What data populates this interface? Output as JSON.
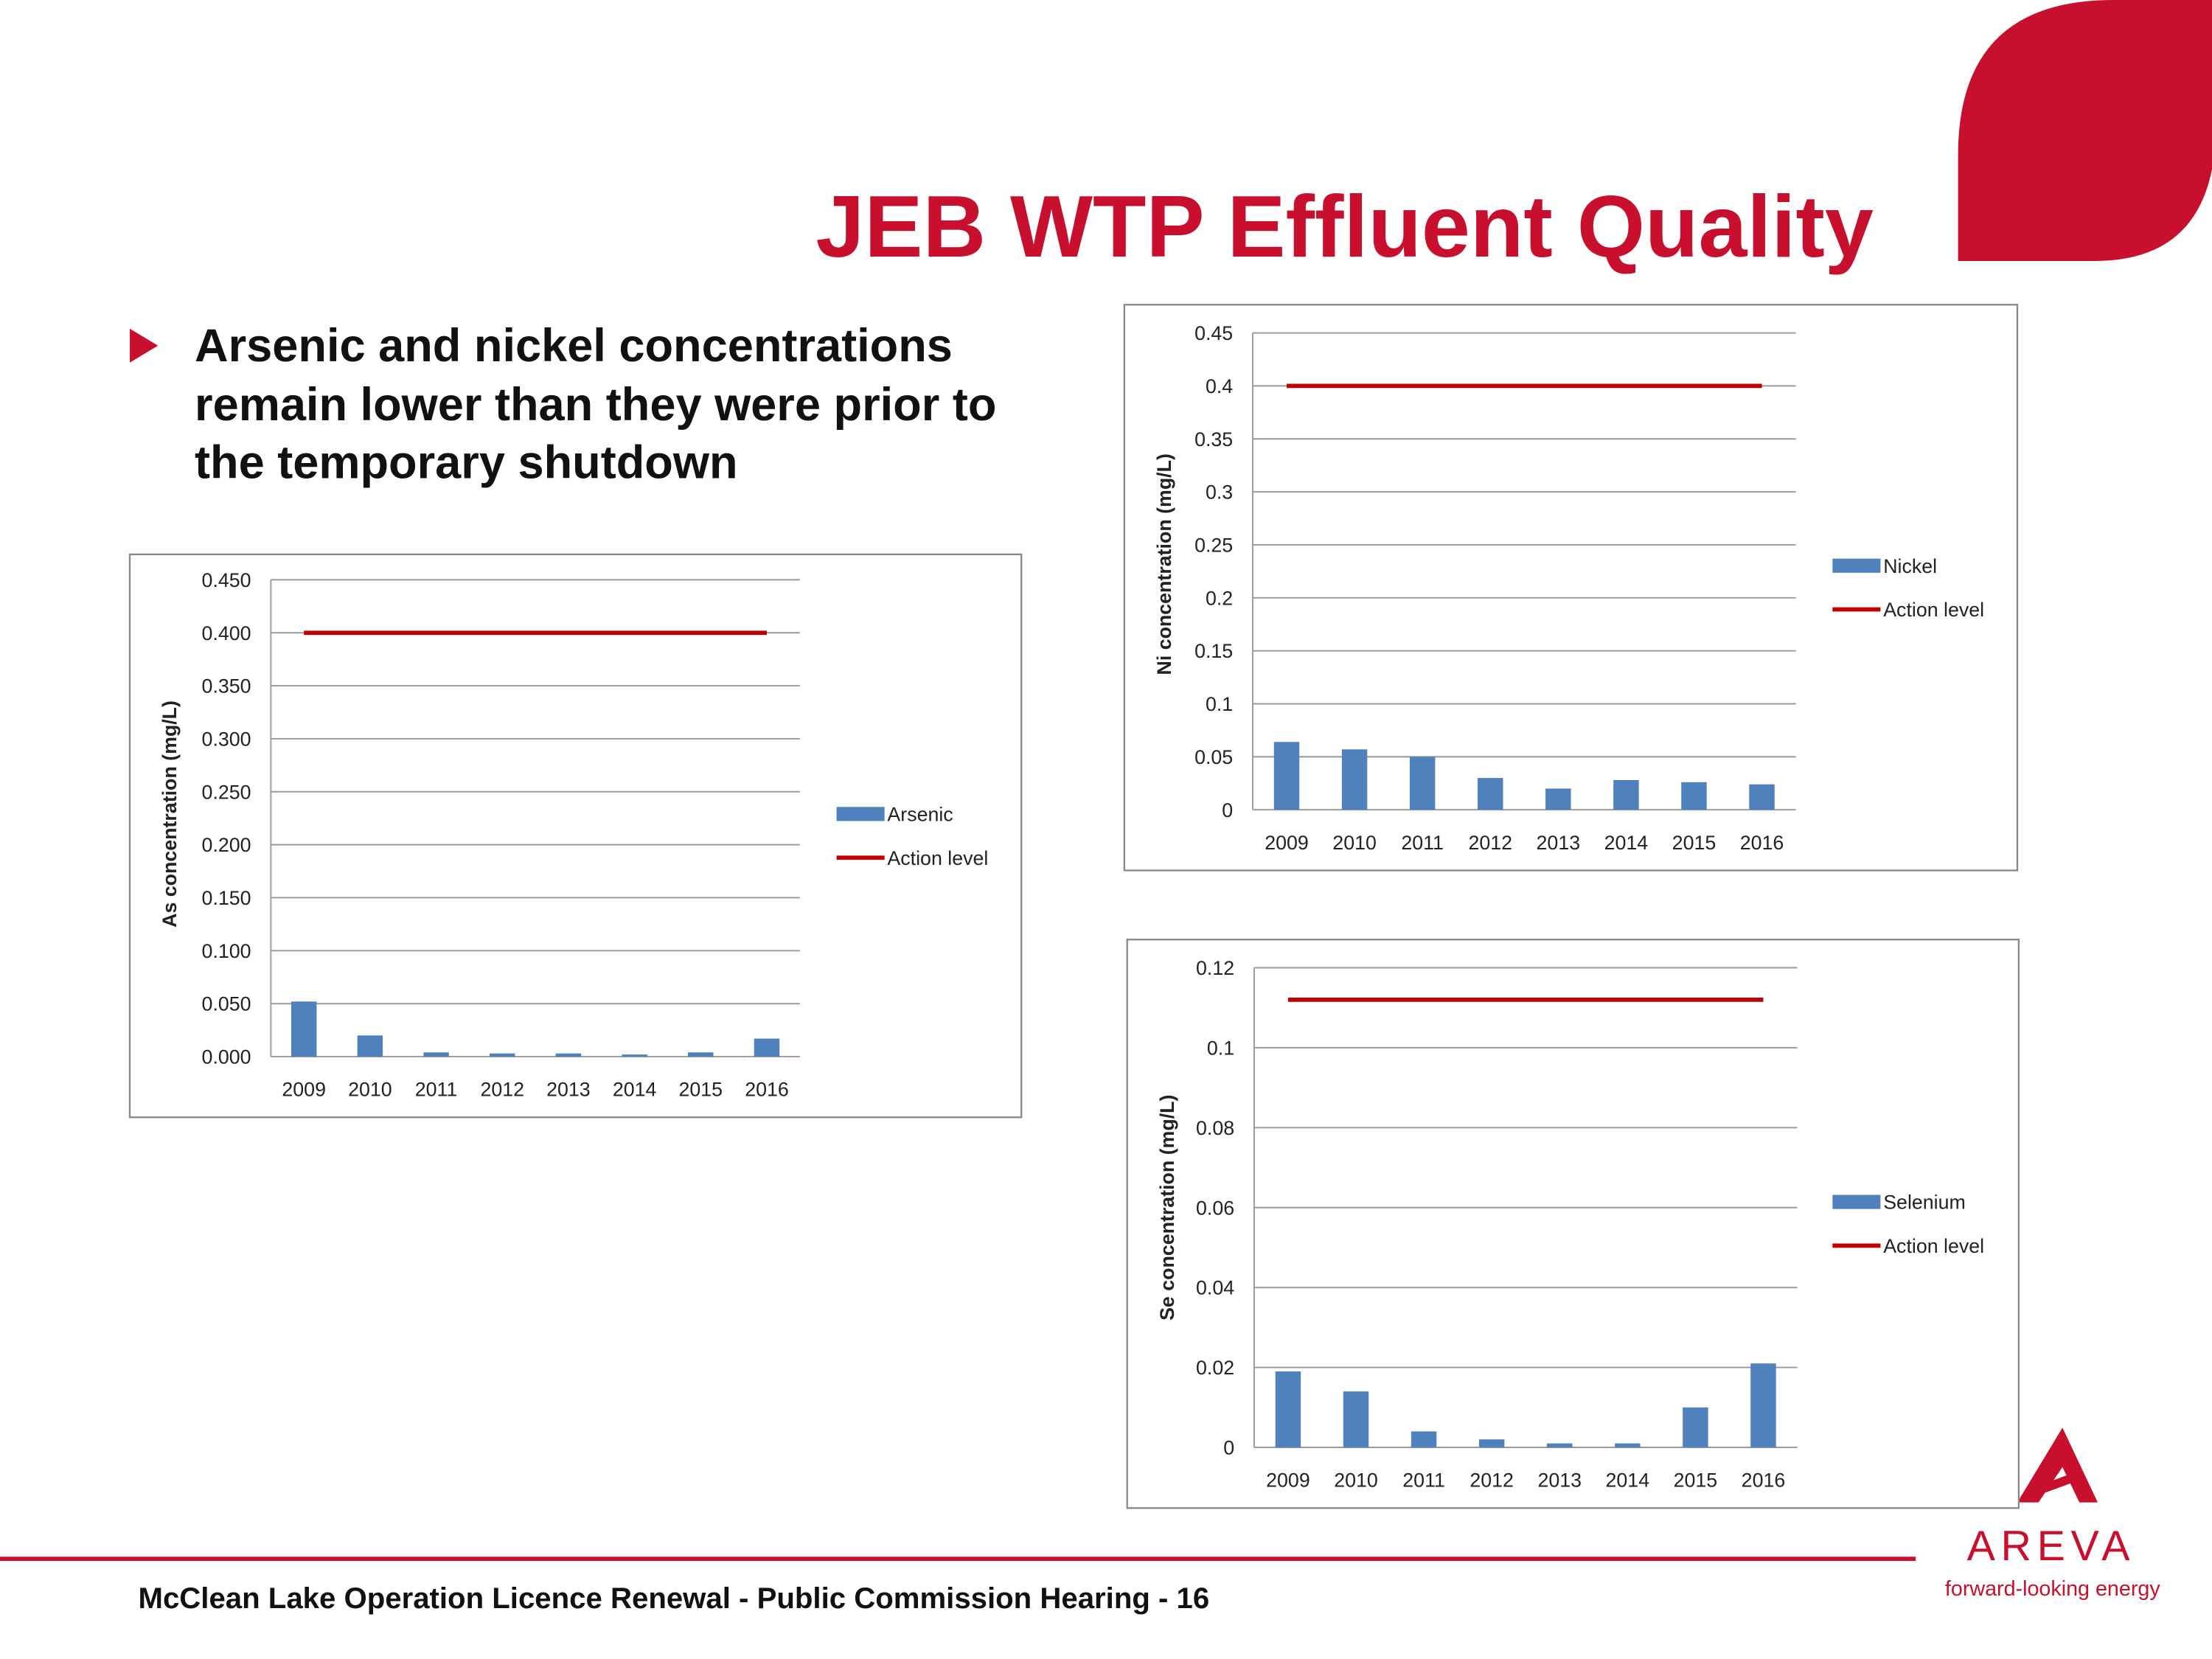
{
  "title": "JEB WTP Effluent Quality",
  "bullet": [
    "Arsenic and nickel concentrations",
    "remain lower than they were prior to",
    "the temporary shutdown"
  ],
  "footer": "McClean Lake Operation Licence Renewal - Public Commission Hearing - 16",
  "logo": {
    "name": "AREVA",
    "tagline": "forward-looking energy"
  },
  "chart_data": [
    {
      "type": "bar",
      "y_label": "As concentration (mg/L)",
      "categories": [
        "2009",
        "2010",
        "2011",
        "2012",
        "2013",
        "2014",
        "2015",
        "2016"
      ],
      "series": [
        {
          "name": "Arsenic",
          "color": "#4f81bd",
          "values": [
            0.052,
            0.02,
            0.004,
            0.003,
            0.003,
            0.002,
            0.004,
            0.017
          ]
        },
        {
          "name": "Action level",
          "type": "line",
          "color": "#c00000",
          "values": [
            0.4,
            0.4,
            0.4,
            0.4,
            0.4,
            0.4,
            0.4,
            0.4
          ]
        }
      ],
      "ylim": [
        0,
        0.45
      ],
      "yticks": [
        {
          "value": 0,
          "label": "0.000"
        },
        {
          "value": 0.05,
          "label": "0.050"
        },
        {
          "value": 0.1,
          "label": "0.100"
        },
        {
          "value": 0.15,
          "label": "0.150"
        },
        {
          "value": 0.2,
          "label": "0.200"
        },
        {
          "value": 0.25,
          "label": "0.250"
        },
        {
          "value": 0.3,
          "label": "0.300"
        },
        {
          "value": 0.35,
          "label": "0.350"
        },
        {
          "value": 0.4,
          "label": "0.400"
        },
        {
          "value": 0.45,
          "label": "0.450"
        }
      ],
      "grid": true,
      "legend": "right"
    },
    {
      "type": "bar",
      "y_label": "Ni concentration (mg/L)",
      "categories": [
        "2009",
        "2010",
        "2011",
        "2012",
        "2013",
        "2014",
        "2015",
        "2016"
      ],
      "series": [
        {
          "name": "Nickel",
          "color": "#4f81bd",
          "values": [
            0.064,
            0.057,
            0.05,
            0.03,
            0.02,
            0.028,
            0.026,
            0.024
          ]
        },
        {
          "name": "Action level",
          "type": "line",
          "color": "#c00000",
          "values": [
            0.4,
            0.4,
            0.4,
            0.4,
            0.4,
            0.4,
            0.4,
            0.4
          ]
        }
      ],
      "ylim": [
        0,
        0.45
      ],
      "yticks": [
        0,
        0.05,
        0.1,
        0.15,
        0.2,
        0.25,
        0.3,
        0.35,
        0.4,
        0.45
      ],
      "grid": true,
      "legend": "right"
    },
    {
      "type": "bar",
      "y_label": "Se concentration (mg/L)",
      "categories": [
        "2009",
        "2010",
        "2011",
        "2012",
        "2013",
        "2014",
        "2015",
        "2016"
      ],
      "series": [
        {
          "name": "Selenium",
          "color": "#4f81bd",
          "values": [
            0.019,
            0.014,
            0.004,
            0.002,
            0.001,
            0.001,
            0.01,
            0.021
          ]
        },
        {
          "name": "Action level",
          "type": "line",
          "color": "#c00000",
          "values": [
            0.112,
            0.112,
            0.112,
            0.112,
            0.112,
            0.112,
            0.112,
            0.112
          ]
        }
      ],
      "ylim": [
        0,
        0.12
      ],
      "yticks": [
        0,
        0.02,
        0.04,
        0.06,
        0.08,
        0.1,
        0.12
      ],
      "grid": true,
      "legend": "right"
    }
  ]
}
